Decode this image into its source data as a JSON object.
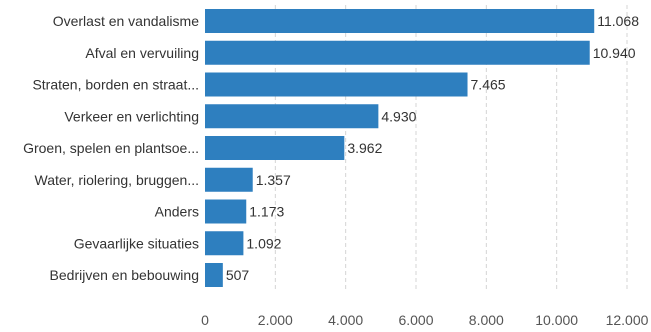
{
  "chart_data": {
    "type": "bar",
    "orientation": "horizontal",
    "categories": [
      "Overlast en vandalisme",
      "Afval en vervuiling",
      "Straten, borden en straat...",
      "Verkeer en verlichting",
      "Groen, spelen en plantsoe...",
      "Water, riolering, bruggen...",
      "Anders",
      "Gevaarlijke situaties",
      "Bedrijven en bebouwing"
    ],
    "values": [
      11068,
      10940,
      7465,
      4930,
      3962,
      1357,
      1173,
      1092,
      507
    ],
    "value_labels": [
      "11.068",
      "10.940",
      "7.465",
      "4.930",
      "3.962",
      "1.357",
      "1.173",
      "1.092",
      "507"
    ],
    "xlim": [
      0,
      12000
    ],
    "xticks": [
      0,
      2000,
      4000,
      6000,
      8000,
      10000,
      12000
    ],
    "xtick_labels": [
      "0",
      "2.000",
      "4.000",
      "6.000",
      "8.000",
      "10.000",
      "12.000"
    ],
    "title": "",
    "xlabel": "",
    "ylabel": "",
    "grid": "vertical dashed",
    "legend": "none",
    "bar_color": "#2e7fbf"
  }
}
